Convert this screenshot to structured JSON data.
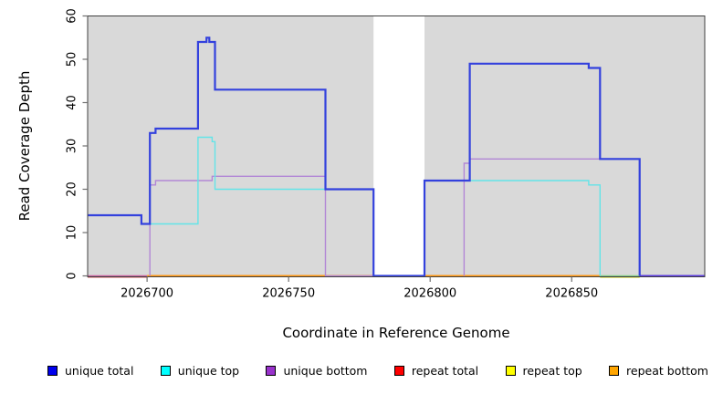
{
  "figure": {
    "x_axis_title": "Coordinate in Reference Genome",
    "y_axis_title": "Read Coverage Depth"
  },
  "legend": {
    "items": [
      {
        "label": "unique total",
        "color": "#0000ee"
      },
      {
        "label": "unique top",
        "color": "#00ffff"
      },
      {
        "label": "unique bottom",
        "color": "#9932cc"
      },
      {
        "label": "repeat total",
        "color": "#ff0000"
      },
      {
        "label": "repeat top",
        "color": "#ffff00"
      },
      {
        "label": "repeat bottom",
        "color": "#ffa500"
      }
    ]
  },
  "chart_data": {
    "type": "line",
    "subtype": "step-coverage",
    "xlabel": "Coordinate in Reference Genome",
    "ylabel": "Read Coverage Depth",
    "xlim": [
      2026679,
      2026897
    ],
    "ylim": [
      0,
      60
    ],
    "x_ticks": [
      2026700,
      2026750,
      2026800,
      2026850
    ],
    "y_ticks": [
      0,
      10,
      20,
      30,
      40,
      50,
      60
    ],
    "grid": false,
    "legend_position": "bottom",
    "plot_background": "#d9d9d9",
    "gap_band": {
      "from": 2026780,
      "to": 2026798,
      "color": "#ffffff"
    },
    "series": [
      {
        "name": "unique bottom",
        "line_color": "#b287d6",
        "width": 1.4,
        "segments": [
          [
            [
              2026701,
              0
            ],
            [
              2026701,
              21
            ],
            [
              2026703,
              21
            ],
            [
              2026703,
              22
            ],
            [
              2026723,
              22
            ],
            [
              2026723,
              23
            ],
            [
              2026763,
              23
            ],
            [
              2026763,
              0
            ],
            [
              2026780,
              0
            ]
          ],
          [
            [
              2026812,
              0
            ],
            [
              2026812,
              26
            ],
            [
              2026814,
              26
            ],
            [
              2026814,
              27
            ],
            [
              2026874,
              27
            ],
            [
              2026874,
              0
            ]
          ]
        ]
      },
      {
        "name": "unique top",
        "line_color": "#63e4e8",
        "width": 1.4,
        "segments": [
          [
            [
              2026701,
              12
            ],
            [
              2026718,
              12
            ],
            [
              2026718,
              32
            ],
            [
              2026723,
              32
            ],
            [
              2026723,
              31
            ],
            [
              2026724,
              31
            ],
            [
              2026724,
              20
            ],
            [
              2026763,
              20
            ]
          ],
          [
            [
              2026814,
              22
            ],
            [
              2026856,
              22
            ],
            [
              2026856,
              21
            ],
            [
              2026860,
              21
            ],
            [
              2026860,
              0
            ]
          ]
        ]
      },
      {
        "name": "unique total",
        "line_color": "#3341dd",
        "width": 2.2,
        "segments": [
          [
            [
              2026679,
              14
            ],
            [
              2026698,
              14
            ],
            [
              2026698,
              12
            ],
            [
              2026701,
              12
            ],
            [
              2026701,
              33
            ],
            [
              2026703,
              33
            ],
            [
              2026703,
              34
            ],
            [
              2026718,
              34
            ],
            [
              2026718,
              54
            ],
            [
              2026721,
              54
            ],
            [
              2026721,
              55
            ],
            [
              2026722,
              55
            ],
            [
              2026722,
              54
            ],
            [
              2026724,
              54
            ],
            [
              2026724,
              43
            ],
            [
              2026763,
              43
            ],
            [
              2026763,
              20
            ],
            [
              2026780,
              20
            ],
            [
              2026780,
              0
            ],
            [
              2026798,
              0
            ],
            [
              2026798,
              22
            ],
            [
              2026814,
              22
            ],
            [
              2026814,
              49
            ],
            [
              2026856,
              49
            ],
            [
              2026856,
              48
            ],
            [
              2026860,
              48
            ],
            [
              2026860,
              27
            ],
            [
              2026874,
              27
            ],
            [
              2026874,
              0
            ]
          ]
        ]
      }
    ],
    "zero_line_segments": [
      {
        "name": "repeat total at 0",
        "from": 2026679,
        "to": 2026700,
        "color": "#eda0a0",
        "width": 1.2,
        "dy": 1.8
      },
      {
        "name": "repeat top at 0",
        "from": 2026860,
        "to": 2026874,
        "color": "#e8e87c",
        "width": 1.4,
        "dy": 1.8
      },
      {
        "name": "unique bottom + repeat total 0",
        "from": 2026679,
        "to": 2026700,
        "color": "#c9619f",
        "width": 1.6,
        "dy": 0
      },
      {
        "name": "repeat bottom at 0",
        "from": 2026700,
        "to": 2026860,
        "color": "#ff9814",
        "width": 2.0,
        "dy": 0
      },
      {
        "name": "unique top + repeat top at 0",
        "from": 2026860,
        "to": 2026874,
        "color": "#84cc84",
        "width": 1.6,
        "dy": 0
      },
      {
        "name": "unique total + bottom at 0",
        "from": 2026874,
        "to": 2026897,
        "color": "#5b3be0",
        "width": 2.0,
        "dy": 0
      }
    ],
    "axis": {
      "tick_color": "#707070",
      "label_color": "#000000",
      "border_color": "#404040",
      "tick_font_px": 13
    }
  }
}
